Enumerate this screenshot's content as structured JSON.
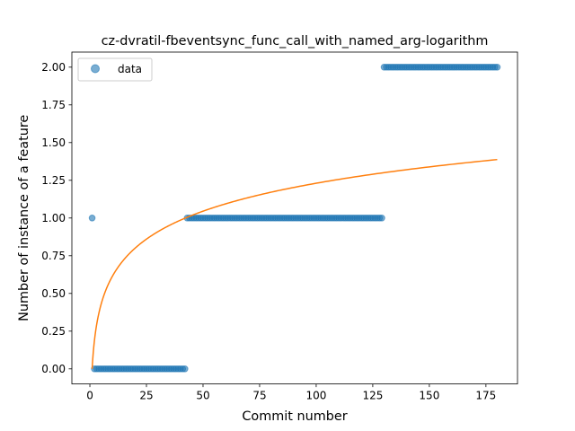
{
  "chart_data": {
    "type": "scatter",
    "title": "cz-dvratil-fbeventsync_func_call_with_named_arg-logarithm",
    "xlabel": "Commit number",
    "ylabel": "Number of instance of a feature",
    "xlim": [
      -7.95,
      188.95
    ],
    "ylim": [
      -0.1,
      2.1
    ],
    "xticks": [
      0,
      25,
      50,
      75,
      100,
      125,
      150,
      175
    ],
    "xtick_labels": [
      "0",
      "25",
      "50",
      "75",
      "100",
      "125",
      "150",
      "175"
    ],
    "yticks": [
      0.0,
      0.25,
      0.5,
      0.75,
      1.0,
      1.25,
      1.5,
      1.75,
      2.0
    ],
    "ytick_labels": [
      "0.00",
      "0.25",
      "0.50",
      "0.75",
      "1.00",
      "1.25",
      "1.50",
      "1.75",
      "2.00"
    ],
    "legend": {
      "placement": "top-left",
      "entries": [
        "data"
      ]
    },
    "grid": false,
    "series": [
      {
        "name": "data",
        "kind": "scatter",
        "color": "#1f77b4",
        "alpha": 0.6,
        "segments": [
          {
            "x_start": 1,
            "x_end": 1,
            "y": 1
          },
          {
            "x_start": 2,
            "x_end": 42,
            "y": 0
          },
          {
            "x_start": 43,
            "x_end": 129,
            "y": 1
          },
          {
            "x_start": 130,
            "x_end": 180,
            "y": 2
          }
        ]
      },
      {
        "kind": "line",
        "color": "#ff7f0e",
        "model": "logarithmic",
        "a": 0.0,
        "b": 0.2672,
        "x_range": [
          1,
          180
        ]
      }
    ]
  }
}
